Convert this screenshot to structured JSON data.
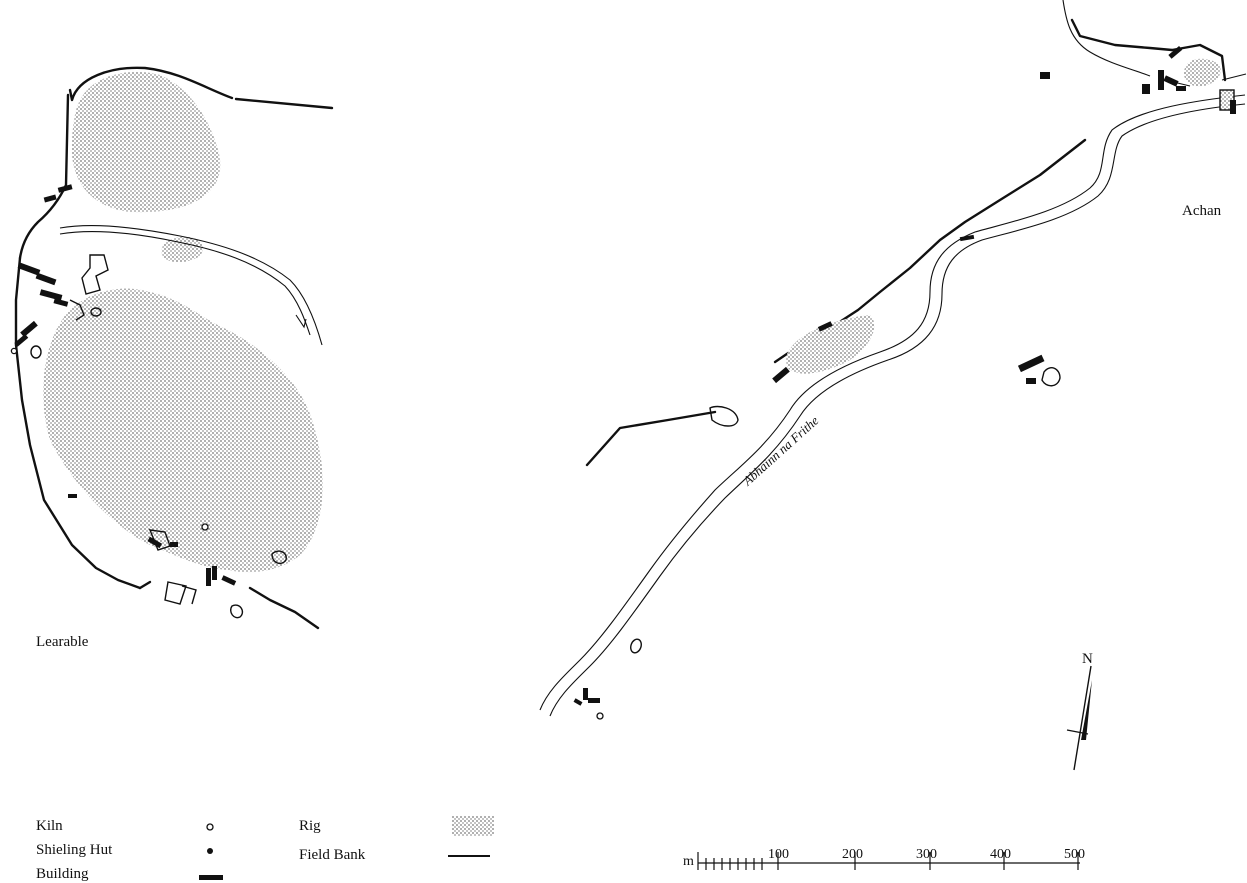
{
  "places": {
    "learable": "Learable",
    "achan": "Achan",
    "river": "Abhainn na Frithe"
  },
  "north_label": "N",
  "legend": {
    "kiln": "Kiln",
    "shieling_hut": "Shieling Hut",
    "building": "Building",
    "rig": "Rig",
    "field_bank": "Field Bank"
  },
  "scale": {
    "unit": "m",
    "ticks": [
      "100",
      "200",
      "300",
      "400",
      "500"
    ]
  },
  "colors": {
    "ink": "#111111",
    "rig_fill": "#d4d4d4"
  }
}
